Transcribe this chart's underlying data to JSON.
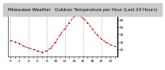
{
  "title": "Milwaukee Weather   Outdoor Temperature per Hour (Last 24 Hours)",
  "hours": [
    0,
    1,
    2,
    3,
    4,
    5,
    6,
    7,
    8,
    9,
    10,
    11,
    12,
    13,
    14,
    15,
    16,
    17,
    18,
    19,
    20,
    21,
    22,
    23
  ],
  "temps": [
    31,
    30,
    29,
    27,
    26,
    25,
    24,
    23,
    24,
    26,
    30,
    35,
    39,
    43,
    47,
    48,
    46,
    43,
    39,
    35,
    32,
    30,
    28,
    27
  ],
  "line_color": "#ff0000",
  "marker_color": "#000000",
  "background_color": "#ffffff",
  "title_bg_color": "#cccccc",
  "grid_color": "#999999",
  "ylim": [
    20,
    50
  ],
  "yticks": [
    25,
    30,
    35,
    40,
    45
  ],
  "xticks": [
    0,
    1,
    2,
    3,
    4,
    5,
    6,
    7,
    8,
    9,
    10,
    11,
    12,
    13,
    14,
    15,
    16,
    17,
    18,
    19,
    20,
    21,
    22,
    23
  ],
  "xlabel_step": 2,
  "title_fontsize": 4.0,
  "tick_fontsize": 3.2,
  "linewidth": 0.7,
  "markersize": 1.8
}
